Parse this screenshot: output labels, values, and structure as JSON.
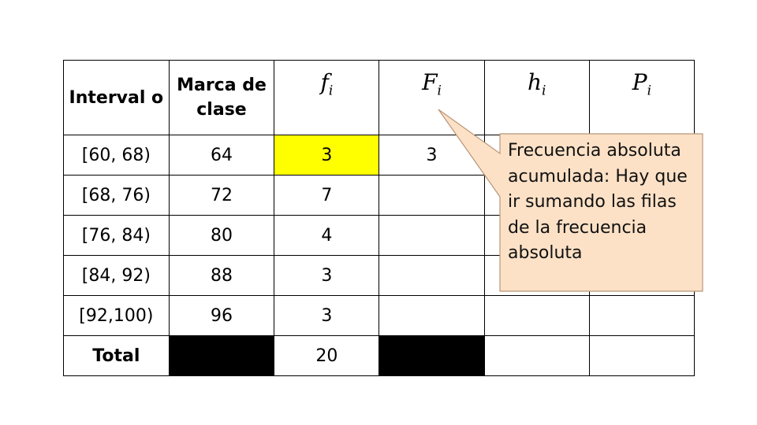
{
  "table": {
    "headers": [
      "Interval o",
      "Marca de clase",
      "f",
      "F",
      "h",
      "P"
    ],
    "header_subscript": "i",
    "rows": [
      {
        "interval": "[60, 68)",
        "mark": "64",
        "fi": "3",
        "Fi": "3",
        "hi": "",
        "Pi": ""
      },
      {
        "interval": "[68, 76)",
        "mark": "72",
        "fi": "7",
        "Fi": "",
        "hi": "",
        "Pi": ""
      },
      {
        "interval": "[76, 84)",
        "mark": "80",
        "fi": "4",
        "Fi": "",
        "hi": "",
        "Pi": ""
      },
      {
        "interval": "[84, 92)",
        "mark": "88",
        "fi": "3",
        "Fi": "",
        "hi": "",
        "Pi": ""
      },
      {
        "interval": "[92,100)",
        "mark": "96",
        "fi": "3",
        "Fi": "",
        "hi": "",
        "Pi": ""
      }
    ],
    "total": {
      "label": "Total",
      "fi": "20"
    },
    "highlight_color": "#ffff00"
  },
  "callout": {
    "text": "Frecuencia absoluta acumulada: Hay que ir sumando las filas de la frecuencia absoluta",
    "fill": "#fde1c6",
    "border": "#b8977a"
  }
}
